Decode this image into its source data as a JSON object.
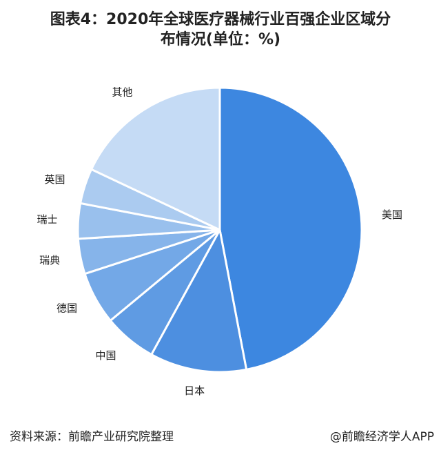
{
  "title": {
    "line1": "图表4：2020年全球医疗器械行业百强企业区域分",
    "line2": "布情况(单位：%)"
  },
  "footer": {
    "source": "资料来源：前瞻产业研究院整理",
    "brand": "@前瞻经济学人APP"
  },
  "chart_data": {
    "type": "pie",
    "title": "2020年全球医疗器械行业百强企业区域分布情况(单位：%)",
    "categories": [
      "美国",
      "日本",
      "中国",
      "德国",
      "瑞典",
      "瑞士",
      "英国",
      "其他"
    ],
    "values": [
      47,
      11,
      6,
      6,
      4,
      4,
      4,
      18
    ],
    "colors": [
      "#3d87e0",
      "#4d8fe0",
      "#5f9be3",
      "#73a8e7",
      "#86b4ea",
      "#99c0ed",
      "#abcbf0",
      "#c5dbf5"
    ]
  }
}
